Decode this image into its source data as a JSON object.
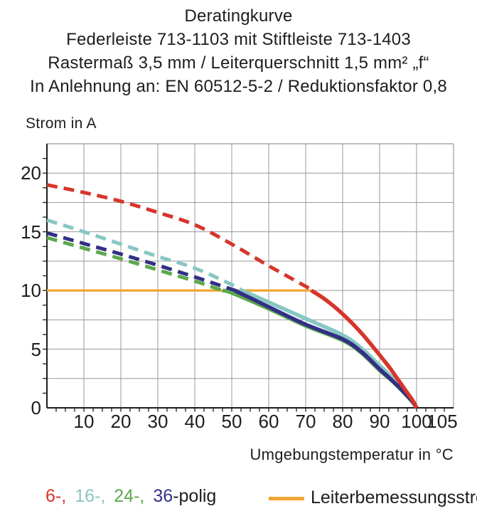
{
  "title": {
    "line1": "Deratingkurve",
    "line2": "Federleiste 713-1103 mit Stiftleiste 713-1403",
    "line3": "Rastermaß 3,5 mm / Leiterquerschnitt 1,5 mm² „f“",
    "line4": "In Anlehnung an: EN 60512-5-2 / Reduktionsfaktor 0,8"
  },
  "legend": {
    "items": [
      {
        "text": "6-,",
        "series": "6-polig"
      },
      {
        "text": "16-,",
        "series": "16-polig"
      },
      {
        "text": "24-,",
        "series": "24-polig"
      },
      {
        "text": "36",
        "series": "36-polig"
      }
    ],
    "suffix": "-polig",
    "rated": {
      "label": "Leiterbemessungsstrom"
    }
  },
  "colors": {
    "axis": "#1d1d1b",
    "grid": "#999999",
    "text": "#1d1d1b"
  },
  "chart_data": {
    "type": "line",
    "title": "Deratingkurve",
    "xlabel": "Umgebungstemperatur in °C",
    "ylabel": "Strom in A",
    "xlim": [
      0,
      110
    ],
    "ylim": [
      0,
      22.5
    ],
    "x_ticks": [
      10,
      20,
      30,
      40,
      50,
      60,
      70,
      80,
      90,
      100,
      105
    ],
    "y_ticks": [
      0,
      5,
      10,
      15,
      20
    ],
    "axes": {
      "x_grid": 10,
      "y_grid": 2.5,
      "x_minor": 2.5,
      "y_minor": 1.25,
      "grid_on": true
    },
    "line_style_note": "curves dashed above rated current 10 A, solid below",
    "reference_line": {
      "label": "Leiterbemessungsstrom",
      "value": 10,
      "x_end": 71.5,
      "color": "#F2A430"
    },
    "series": [
      {
        "name": "6-polig",
        "color": "#D6352B",
        "points": [
          [
            0,
            19
          ],
          [
            10,
            18.35
          ],
          [
            20,
            17.6
          ],
          [
            30,
            16.65
          ],
          [
            40,
            15.6
          ],
          [
            50,
            13.95
          ],
          [
            60,
            12.1
          ],
          [
            70,
            10.35
          ],
          [
            71.5,
            10
          ],
          [
            75,
            9.3
          ],
          [
            80,
            8
          ],
          [
            85,
            6.4
          ],
          [
            90,
            4.5
          ],
          [
            93,
            3.3
          ],
          [
            95,
            2.4
          ],
          [
            97,
            1.5
          ],
          [
            99,
            0.6
          ],
          [
            100,
            0
          ]
        ]
      },
      {
        "name": "16-polig",
        "color": "#87C7C3",
        "points": [
          [
            0,
            16
          ],
          [
            10,
            15
          ],
          [
            20,
            13.95
          ],
          [
            30,
            12.9
          ],
          [
            40,
            11.9
          ],
          [
            50,
            10.5
          ],
          [
            52.8,
            10
          ],
          [
            60,
            9
          ],
          [
            70,
            7.6
          ],
          [
            80,
            6.2
          ],
          [
            85,
            5.1
          ],
          [
            90,
            3.6
          ],
          [
            93,
            2.7
          ],
          [
            95,
            2
          ],
          [
            97,
            1.3
          ],
          [
            99,
            0.5
          ],
          [
            100,
            0
          ]
        ]
      },
      {
        "name": "24-polig",
        "color": "#5CA94C",
        "points": [
          [
            0,
            14.5
          ],
          [
            10,
            13.6
          ],
          [
            20,
            12.7
          ],
          [
            30,
            11.75
          ],
          [
            40,
            10.8
          ],
          [
            47.5,
            10
          ],
          [
            50,
            9.8
          ],
          [
            60,
            8.45
          ],
          [
            70,
            7
          ],
          [
            80,
            5.75
          ],
          [
            85,
            4.7
          ],
          [
            90,
            3.2
          ],
          [
            93,
            2.4
          ],
          [
            95,
            1.8
          ],
          [
            97,
            1.15
          ],
          [
            99,
            0.45
          ],
          [
            100,
            0
          ]
        ]
      },
      {
        "name": "36-polig",
        "color": "#322F87",
        "points": [
          [
            0,
            14.9
          ],
          [
            10,
            14
          ],
          [
            20,
            13.1
          ],
          [
            30,
            12.15
          ],
          [
            40,
            11.15
          ],
          [
            50,
            10.1
          ],
          [
            50.8,
            10
          ],
          [
            60,
            8.6
          ],
          [
            70,
            7.1
          ],
          [
            80,
            5.85
          ],
          [
            85,
            4.8
          ],
          [
            90,
            3.3
          ],
          [
            93,
            2.45
          ],
          [
            95,
            1.85
          ],
          [
            97,
            1.2
          ],
          [
            99,
            0.5
          ],
          [
            100,
            0
          ]
        ]
      }
    ],
    "draw_order": [
      2,
      1,
      3,
      0
    ]
  }
}
